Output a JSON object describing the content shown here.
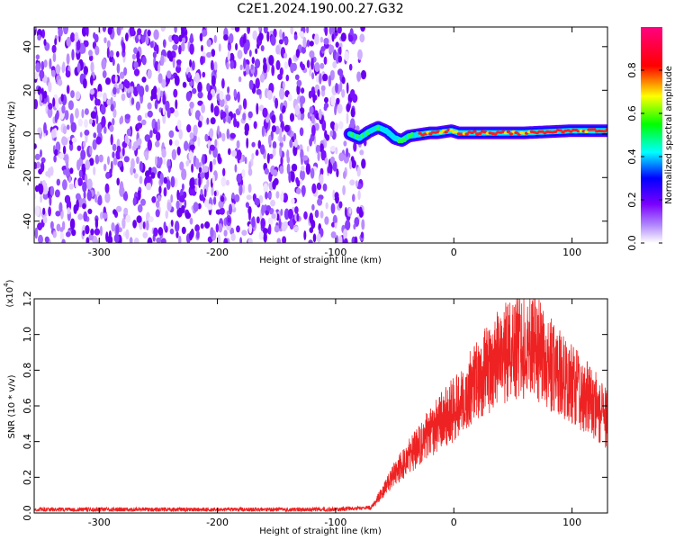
{
  "title": "C2E1.2024.190.00.27.G32",
  "chart_data": [
    {
      "type": "heatmap",
      "xlabel": "Height of straight line (km)",
      "ylabel": "Frequency (Hz)",
      "xlim": [
        -355,
        130
      ],
      "ylim": [
        -50,
        49
      ],
      "xticks": [
        -300,
        -200,
        -100,
        0,
        100
      ],
      "xtick_labels": [
        "-300",
        "-200",
        "-100",
        "0",
        "100"
      ],
      "yticks": [
        -40,
        -20,
        0,
        20,
        40
      ],
      "ytick_labels": [
        "-40",
        "-20",
        "0",
        "20",
        "40"
      ],
      "noise_region_x": [
        -355,
        -75
      ],
      "signal_track": {
        "x": [
          -88,
          -80,
          -72,
          -64,
          -56,
          -50,
          -44,
          -38,
          -32,
          -26,
          -20,
          -14,
          -8,
          -2,
          4,
          20,
          40,
          60,
          80,
          100,
          130
        ],
        "y": [
          0,
          -2,
          1,
          3,
          1,
          -2,
          -3,
          -1,
          -0.5,
          0,
          0.5,
          0.5,
          1,
          1.5,
          0.5,
          0.5,
          0.5,
          0.5,
          1,
          1.5,
          1.5
        ]
      },
      "colorbar": {
        "label": "Normalized spectral amplitude",
        "range": [
          0,
          1
        ],
        "ticks": [
          0.0,
          0.2,
          0.4,
          0.6,
          0.8
        ],
        "tick_labels": [
          "0.0",
          "0.2",
          "0.4",
          "0.6",
          "0.8"
        ],
        "colors": [
          "#ffffff",
          "#7a00ff",
          "#0000ff",
          "#00ffff",
          "#00ff00",
          "#ffff00",
          "#ff0000",
          "#ff0080"
        ]
      },
      "grid": false
    },
    {
      "type": "line",
      "xlabel": "Height of straight line (km)",
      "ylabel": "SNR (10 * v/v)",
      "y_multiplier": "(x10",
      "y_multiplier_exp": "4",
      "xlim": [
        -355,
        130
      ],
      "ylim": [
        0,
        1.2
      ],
      "xticks": [
        -300,
        -200,
        -100,
        0,
        100
      ],
      "xtick_labels": [
        "-300",
        "-200",
        "-100",
        "0",
        "100"
      ],
      "yticks": [
        0.0,
        0.2,
        0.4,
        0.6,
        0.8,
        1.0,
        1.2
      ],
      "ytick_labels": [
        "0.0",
        "0.2",
        "0.4",
        "0.6",
        "0.8",
        "1.0",
        "1.2"
      ],
      "series": [
        {
          "color": "#ee2222",
          "x": [
            -355,
            -300,
            -200,
            -100,
            -70,
            -60,
            -50,
            -40,
            -30,
            -20,
            -10,
            0,
            10,
            20,
            30,
            40,
            50,
            60,
            70,
            80,
            90,
            100,
            110,
            120,
            130
          ],
          "y": [
            0.02,
            0.02,
            0.02,
            0.02,
            0.03,
            0.12,
            0.22,
            0.3,
            0.38,
            0.45,
            0.52,
            0.58,
            0.66,
            0.74,
            0.82,
            0.88,
            0.92,
            0.94,
            0.92,
            0.85,
            0.78,
            0.72,
            0.66,
            0.6,
            0.52
          ]
        }
      ],
      "grid": false
    }
  ]
}
